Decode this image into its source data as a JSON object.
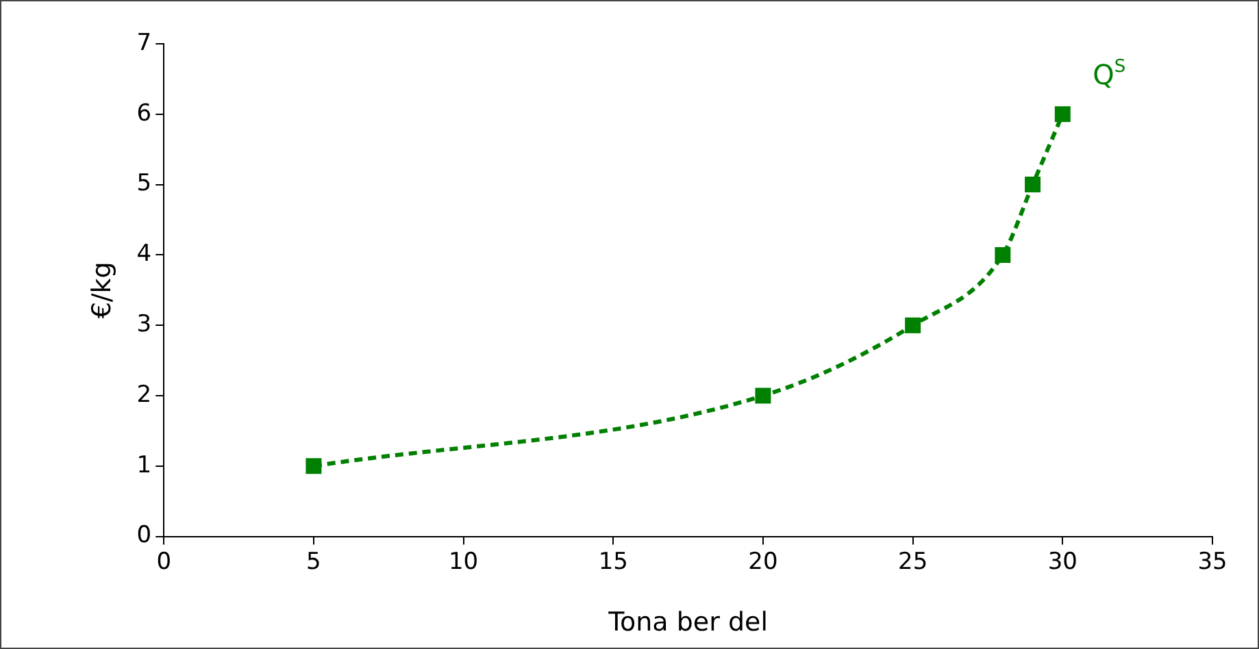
{
  "chart_data": {
    "type": "line",
    "xlabel": "Tona ber del",
    "ylabel": "€/kg",
    "x": [
      5,
      20,
      25,
      28,
      29,
      30
    ],
    "series": [
      {
        "name": "Q$^{S}$",
        "color": "#008000",
        "values": [
          1,
          2,
          3,
          4,
          5,
          6
        ]
      }
    ],
    "xlim": [
      0,
      35
    ],
    "xticks": [
      0,
      5,
      10,
      15,
      20,
      25,
      30,
      35
    ],
    "ylim": [
      0,
      7
    ],
    "yticks": [
      0,
      1,
      2,
      3,
      4,
      5,
      6,
      7
    ],
    "grid": false,
    "legend": false,
    "marker": "square",
    "line_style": "dashed"
  }
}
